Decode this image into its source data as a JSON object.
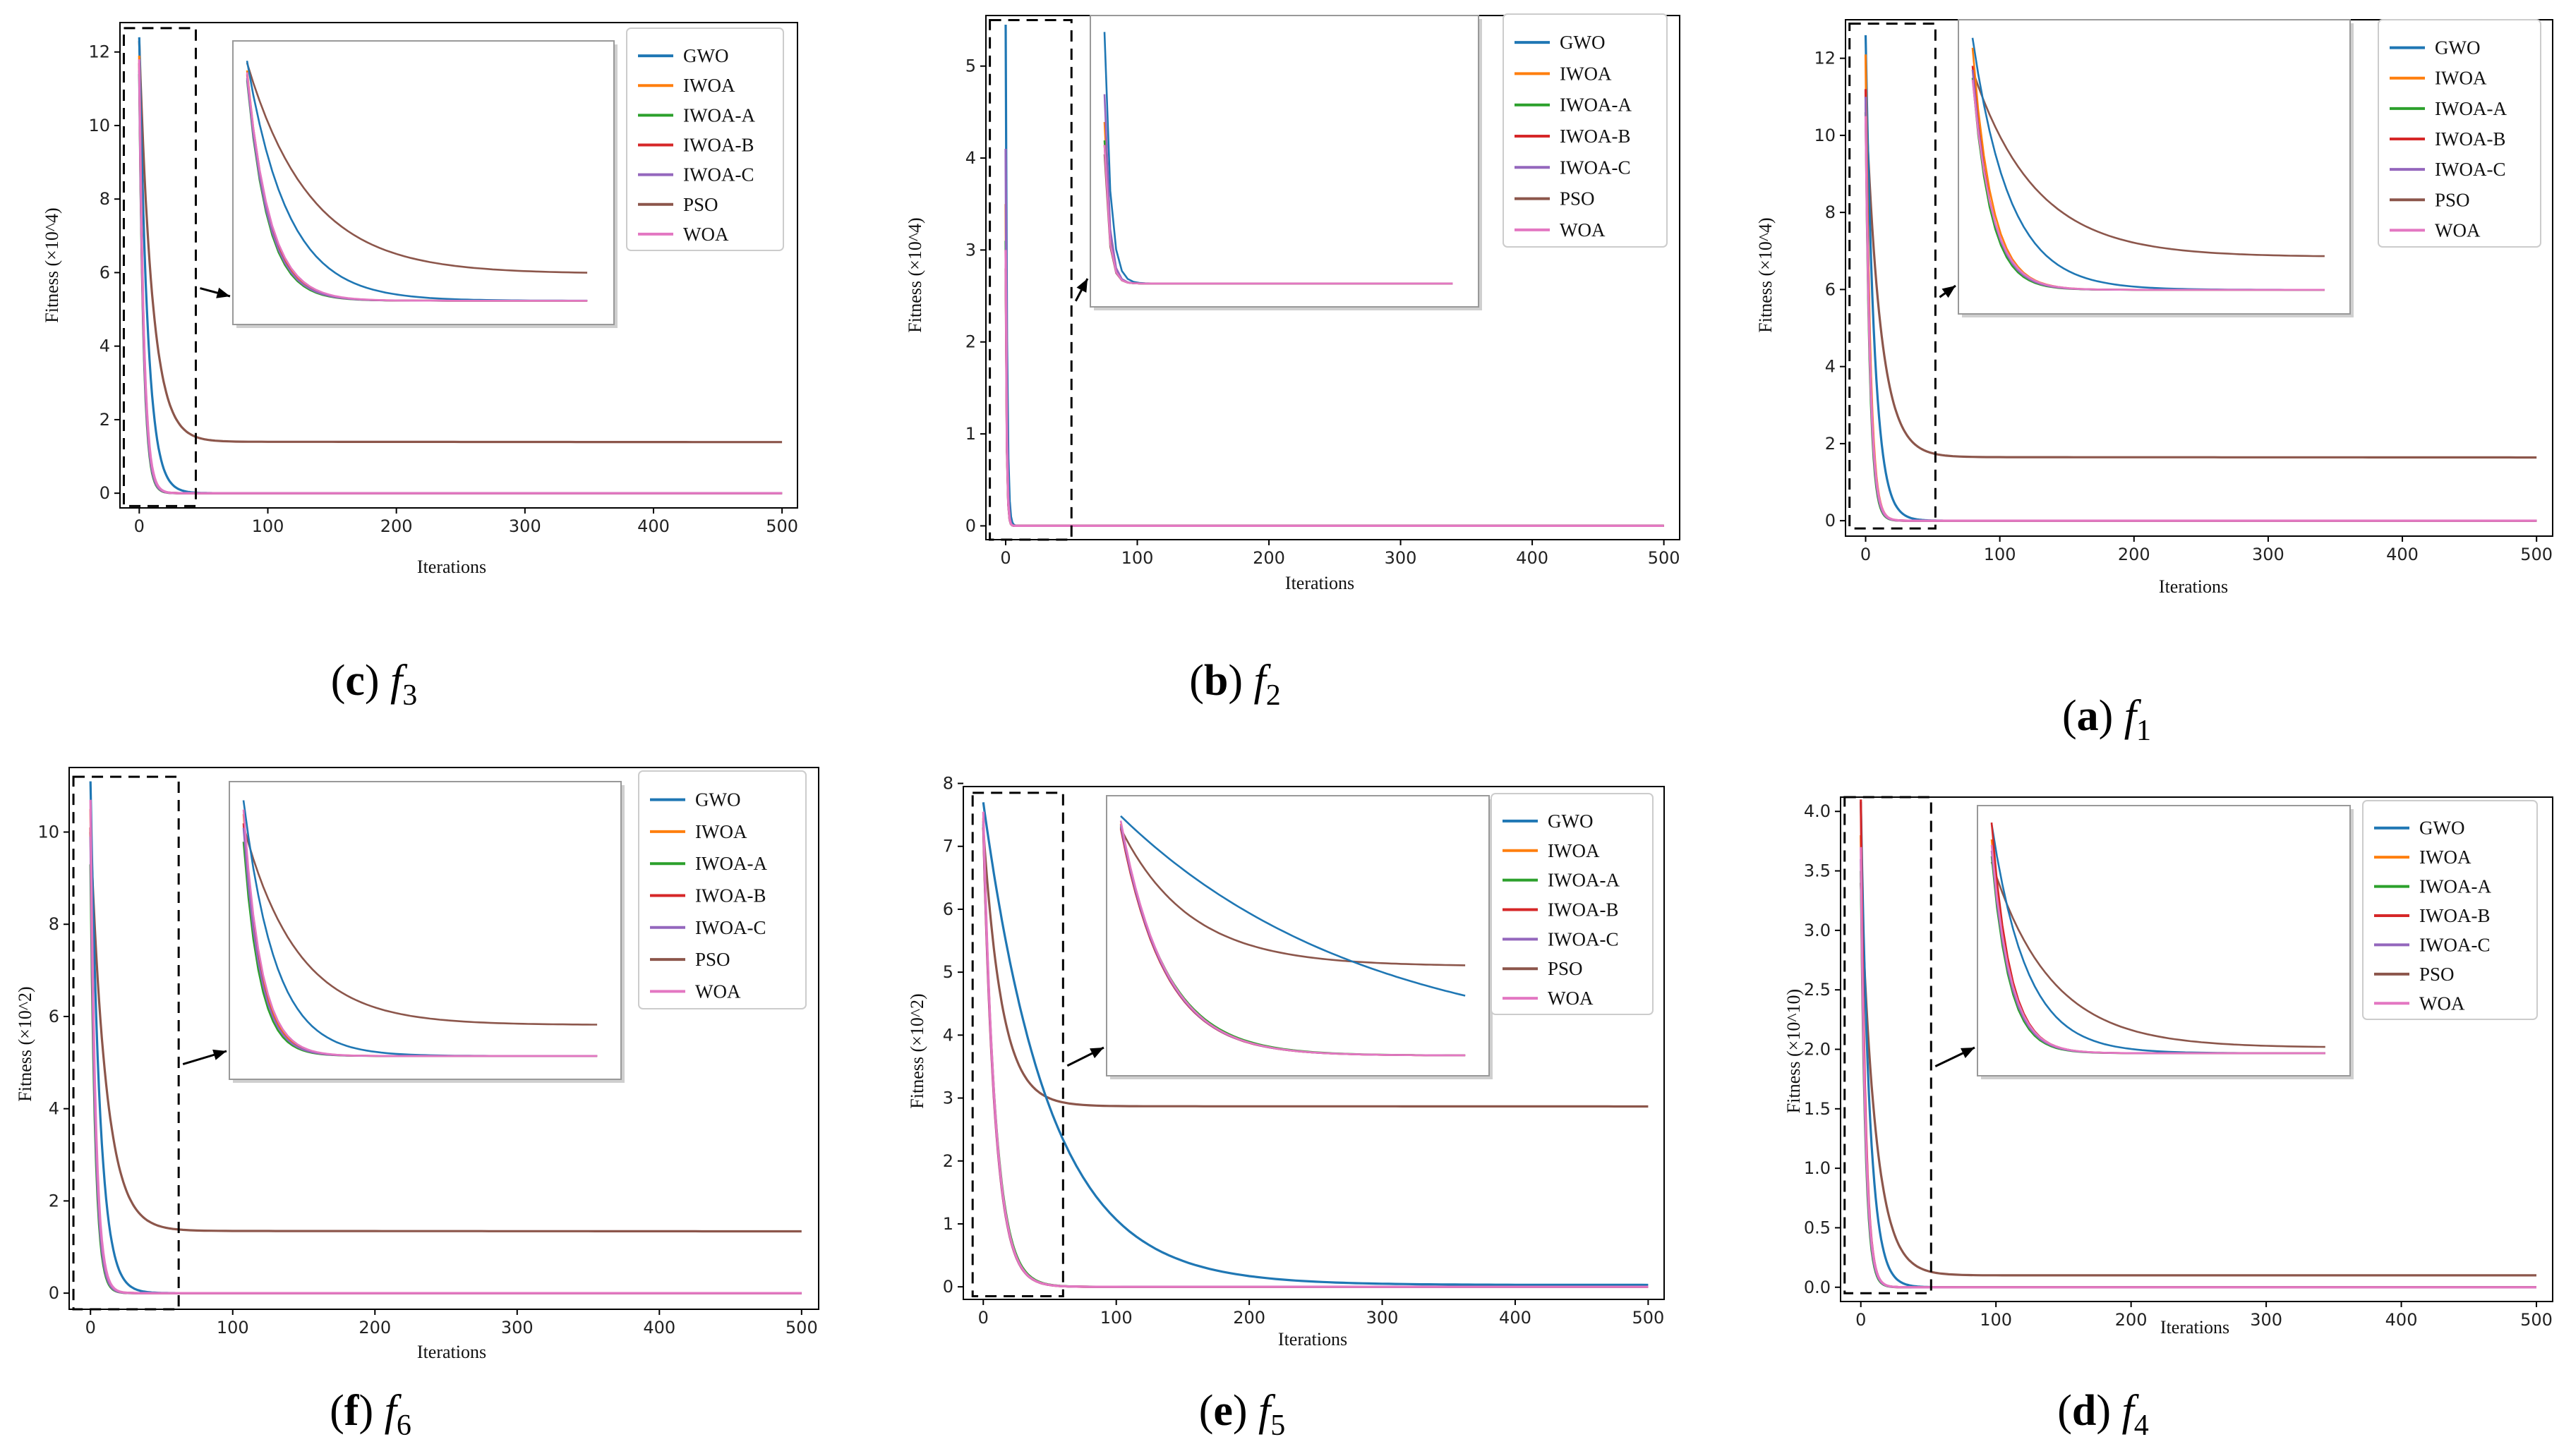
{
  "figure": {
    "series_names": [
      "GWO",
      "IWOA",
      "IWOA-A",
      "IWOA-B",
      "IWOA-C",
      "PSO",
      "WOA"
    ],
    "colors": {
      "GWO": "#1f77b4",
      "IWOA": "#ff7f0e",
      "IWOA-A": "#2ca02c",
      "IWOA-B": "#d62728",
      "IWOA-C": "#9467bd",
      "PSO": "#8c564b",
      "WOA": "#e377c2"
    }
  },
  "chart_data": [
    {
      "id": "c",
      "type": "line",
      "caption": {
        "letter": "c",
        "fn": "f",
        "sub": "3"
      },
      "xlabel": "Iterations",
      "ylabel": "Fitness (×10^4)",
      "xlim": [
        -15,
        512
      ],
      "ylim": [
        -0.4,
        12.8
      ],
      "xticks": [
        0,
        100,
        200,
        300,
        400,
        500
      ],
      "yticks": [
        0,
        2,
        4,
        6,
        8,
        10,
        12
      ],
      "ytick_labels": [
        "0",
        "2",
        "4",
        "6",
        "8",
        "10",
        "12"
      ],
      "legend": [
        "GWO",
        "IWOA",
        "IWOA-A",
        "IWOA-B",
        "IWOA-C",
        "PSO",
        "WOA"
      ],
      "zoom_box": {
        "x": [
          -12,
          44
        ],
        "y": [
          -0.35,
          12.65
        ]
      },
      "inset_ylim": [
        -0.5,
        12.7
      ],
      "series": [
        {
          "name": "PSO",
          "start": 12.3,
          "tau": 10,
          "final": 1.4,
          "decay": 0.0003
        },
        {
          "name": "GWO",
          "start": 12.4,
          "tau": 6.5,
          "final": 0
        },
        {
          "name": "IWOA",
          "start": 11.9,
          "tau": 3.5,
          "final": 0
        },
        {
          "name": "IWOA-A",
          "start": 11.4,
          "tau": 3.3,
          "final": 0
        },
        {
          "name": "IWOA-B",
          "start": 11.7,
          "tau": 3.4,
          "final": 0
        },
        {
          "name": "IWOA-C",
          "start": 11.5,
          "tau": 3.4,
          "final": 0
        },
        {
          "name": "WOA",
          "start": 11.8,
          "tau": 3.6,
          "final": 0
        }
      ]
    },
    {
      "id": "b",
      "type": "line",
      "caption": {
        "letter": "b",
        "fn": "f",
        "sub": "2"
      },
      "xlabel": "Iterations",
      "ylabel": "Fitness (×10^4)",
      "xlim": [
        -15,
        512
      ],
      "ylim": [
        -0.15,
        5.55
      ],
      "xticks": [
        0,
        100,
        200,
        300,
        400,
        500
      ],
      "yticks": [
        0,
        1,
        2,
        3,
        4,
        5
      ],
      "ytick_labels": [
        "0",
        "1",
        "2",
        "3",
        "4",
        "5"
      ],
      "legend": [
        "GWO",
        "IWOA",
        "IWOA-A",
        "IWOA-B",
        "IWOA-C",
        "PSO",
        "WOA"
      ],
      "zoom_box": {
        "x": [
          -12,
          50
        ],
        "y": [
          -0.15,
          5.5
        ]
      },
      "inset_ylim": [
        -0.2,
        5.5
      ],
      "series": [
        {
          "name": "GWO",
          "start": 5.45,
          "tau": 1.0,
          "final": 0
        },
        {
          "name": "IWOA",
          "start": 3.5,
          "tau": 0.8,
          "final": 0
        },
        {
          "name": "IWOA-A",
          "start": 3.1,
          "tau": 0.8,
          "final": 0
        },
        {
          "name": "IWOA-B",
          "start": 3.0,
          "tau": 0.8,
          "final": 0
        },
        {
          "name": "IWOA-C",
          "start": 4.1,
          "tau": 0.8,
          "final": 0
        },
        {
          "name": "PSO",
          "start": 2.8,
          "tau": 0.8,
          "final": 0
        },
        {
          "name": "WOA",
          "start": 3.0,
          "tau": 0.8,
          "final": 0
        }
      ]
    },
    {
      "id": "a",
      "type": "line",
      "caption": {
        "letter": "a",
        "fn": "f",
        "sub": "1"
      },
      "xlabel": "Iterations",
      "ylabel": "Fitness (×10^4)",
      "xlim": [
        -15,
        512
      ],
      "ylim": [
        -0.4,
        13.0
      ],
      "xticks": [
        0,
        100,
        200,
        300,
        400,
        500
      ],
      "yticks": [
        0,
        2,
        4,
        6,
        8,
        10,
        12
      ],
      "ytick_labels": [
        "0",
        "2",
        "4",
        "6",
        "8",
        "10",
        "12"
      ],
      "legend": [
        "GWO",
        "IWOA",
        "IWOA-A",
        "IWOA-B",
        "IWOA-C",
        "PSO",
        "WOA"
      ],
      "zoom_box": {
        "x": [
          -12,
          52
        ],
        "y": [
          -0.2,
          12.9
        ]
      },
      "inset_ylim": [
        -0.5,
        12.8
      ],
      "series": [
        {
          "name": "PSO",
          "start": 11.0,
          "tau": 11,
          "final": 1.65,
          "decay": 0.0002
        },
        {
          "name": "GWO",
          "start": 12.6,
          "tau": 6.5,
          "final": 0
        },
        {
          "name": "IWOA",
          "start": 12.1,
          "tau": 3.4,
          "final": 0
        },
        {
          "name": "IWOA-A",
          "start": 10.6,
          "tau": 3.2,
          "final": 0
        },
        {
          "name": "IWOA-B",
          "start": 11.2,
          "tau": 3.3,
          "final": 0
        },
        {
          "name": "IWOA-C",
          "start": 11.0,
          "tau": 3.3,
          "final": 0
        },
        {
          "name": "WOA",
          "start": 10.5,
          "tau": 3.5,
          "final": 0
        }
      ]
    },
    {
      "id": "f",
      "type": "line",
      "caption": {
        "letter": "f",
        "fn": "f",
        "sub": "6"
      },
      "xlabel": "Iterations",
      "ylabel": "Fitness (×10^2)",
      "xlim": [
        -15,
        512
      ],
      "ylim": [
        -0.35,
        11.4
      ],
      "xticks": [
        0,
        100,
        200,
        300,
        400,
        500
      ],
      "yticks": [
        0,
        2,
        4,
        6,
        8,
        10
      ],
      "ytick_labels": [
        "0",
        "2",
        "4",
        "6",
        "8",
        "10"
      ],
      "legend": [
        "GWO",
        "IWOA",
        "IWOA-A",
        "IWOA-B",
        "IWOA-C",
        "PSO",
        "WOA"
      ],
      "zoom_box": {
        "x": [
          -12,
          62
        ],
        "y": [
          -0.35,
          11.2
        ]
      },
      "inset_ylim": [
        -0.4,
        11.3
      ],
      "series": [
        {
          "name": "PSO",
          "start": 10.0,
          "tau": 11,
          "final": 1.35,
          "decay": 0.0003
        },
        {
          "name": "GWO",
          "start": 11.1,
          "tau": 6.5,
          "final": 0
        },
        {
          "name": "IWOA",
          "start": 10.5,
          "tau": 3.5,
          "final": 0
        },
        {
          "name": "IWOA-A",
          "start": 9.3,
          "tau": 3.3,
          "final": 0
        },
        {
          "name": "IWOA-B",
          "start": 10.1,
          "tau": 3.4,
          "final": 0
        },
        {
          "name": "IWOA-C",
          "start": 9.9,
          "tau": 3.4,
          "final": 0
        },
        {
          "name": "WOA",
          "start": 10.7,
          "tau": 3.6,
          "final": 0
        }
      ]
    },
    {
      "id": "e",
      "type": "line",
      "caption": {
        "letter": "e",
        "fn": "f",
        "sub": "5"
      },
      "xlabel": "Iterations",
      "ylabel": "Fitness (×10^2)",
      "xlim": [
        -15,
        512
      ],
      "ylim": [
        -0.2,
        7.95
      ],
      "xticks": [
        0,
        100,
        200,
        300,
        400,
        500
      ],
      "yticks": [
        0,
        1,
        2,
        3,
        4,
        5,
        6,
        7,
        8
      ],
      "ytick_labels": [
        "0",
        "1",
        "2",
        "3",
        "4",
        "5",
        "6",
        "7",
        "8"
      ],
      "legend": [
        "GWO",
        "IWOA",
        "IWOA-A",
        "IWOA-B",
        "IWOA-C",
        "PSO",
        "WOA"
      ],
      "zoom_box": {
        "x": [
          -8,
          60
        ],
        "y": [
          -0.15,
          7.85
        ]
      },
      "inset_ylim": [
        -0.2,
        7.9
      ],
      "series": [
        {
          "name": "PSO",
          "start": 7.3,
          "tau": 14,
          "final": 2.87,
          "decay": 5e-05
        },
        {
          "name": "GWO",
          "start": 7.7,
          "tau": 50,
          "final": 0.03
        },
        {
          "name": "IWOA",
          "start": 7.45,
          "tau": 9,
          "final": 0
        },
        {
          "name": "IWOA-A",
          "start": 7.35,
          "tau": 9.3,
          "final": 0
        },
        {
          "name": "IWOA-B",
          "start": 7.3,
          "tau": 9,
          "final": 0
        },
        {
          "name": "IWOA-C",
          "start": 7.4,
          "tau": 9,
          "final": 0
        },
        {
          "name": "WOA",
          "start": 7.55,
          "tau": 9,
          "final": 0
        }
      ]
    },
    {
      "id": "d",
      "type": "line",
      "caption": {
        "letter": "d",
        "fn": "f",
        "sub": "4"
      },
      "xlabel": "Iterations",
      "ylabel": "Fitness (×10^10)",
      "xlim": [
        -15,
        512
      ],
      "ylim": [
        -0.12,
        4.12
      ],
      "xticks": [
        0,
        100,
        200,
        300,
        400,
        500
      ],
      "yticks": [
        0.0,
        0.5,
        1.0,
        1.5,
        2.0,
        2.5,
        3.0,
        3.5,
        4.0
      ],
      "ytick_labels": [
        "0.0",
        "0.5",
        "1.0",
        "1.5",
        "2.0",
        "2.5",
        "3.0",
        "3.5",
        "4.0"
      ],
      "legend": [
        "GWO",
        "IWOA",
        "IWOA-A",
        "IWOA-B",
        "IWOA-C",
        "PSO",
        "WOA"
      ],
      "zoom_box": {
        "x": [
          -12,
          52
        ],
        "y": [
          -0.05,
          4.12
        ]
      },
      "inset_ylim": [
        -0.15,
        4.15
      ],
      "series": [
        {
          "name": "PSO",
          "start": 3.4,
          "tau": 11,
          "final": 0.1,
          "decay": 0.0001
        },
        {
          "name": "GWO",
          "start": 4.08,
          "tau": 6.5,
          "final": 0
        },
        {
          "name": "IWOA",
          "start": 3.8,
          "tau": 3.4,
          "final": 0
        },
        {
          "name": "IWOA-A",
          "start": 3.5,
          "tau": 3.3,
          "final": 0
        },
        {
          "name": "IWOA-B",
          "start": 4.1,
          "tau": 3.4,
          "final": 0
        },
        {
          "name": "IWOA-C",
          "start": 3.6,
          "tau": 3.4,
          "final": 0
        },
        {
          "name": "WOA",
          "start": 3.7,
          "tau": 3.5,
          "final": 0
        }
      ]
    }
  ]
}
